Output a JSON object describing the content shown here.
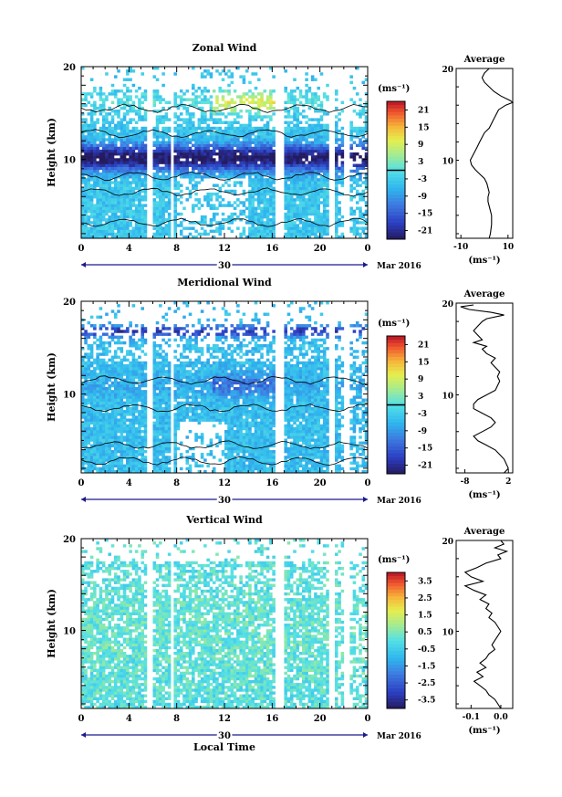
{
  "date_label": "Mar 2016",
  "day_label": "30",
  "xlabel_bottom": "Local Time",
  "cbar_unit": "(ms⁻¹)",
  "chart_data": [
    {
      "type": "heatmap",
      "title": "Zonal Wind",
      "xlabel": "",
      "ylabel": "Height (km)",
      "x_ticks": [
        "0",
        "4",
        "8",
        "12",
        "16",
        "20",
        "0"
      ],
      "y_ticks": [
        "20",
        "10"
      ],
      "x_range_hours": [
        0,
        24
      ],
      "y_range_km": [
        1.5,
        20
      ],
      "colorbar": {
        "unit": "(ms⁻¹)",
        "ticks": [
          21,
          15,
          9,
          3,
          -3,
          -9,
          -15,
          -21
        ],
        "range": [
          -24,
          24
        ],
        "zero_line": true
      },
      "profile": {
        "title": "Average",
        "xlabel": "(ms⁻¹)",
        "x_ticks": [
          "-10",
          "10"
        ],
        "x_range": [
          -12,
          12
        ],
        "y_ticks": [
          "20",
          "10"
        ],
        "points": [
          [
            2,
            20
          ],
          [
            0,
            19.5
          ],
          [
            -1,
            19
          ],
          [
            0,
            18.5
          ],
          [
            2,
            18
          ],
          [
            4,
            17.5
          ],
          [
            7,
            17
          ],
          [
            11,
            16.5
          ],
          [
            12,
            16.3
          ],
          [
            9,
            16
          ],
          [
            6,
            15.5
          ],
          [
            5,
            15
          ],
          [
            4,
            14.5
          ],
          [
            3,
            14
          ],
          [
            2,
            13.5
          ],
          [
            0,
            13
          ],
          [
            -1,
            12.5
          ],
          [
            -2,
            12
          ],
          [
            -3,
            11.5
          ],
          [
            -4,
            11
          ],
          [
            -5,
            10.5
          ],
          [
            -6,
            10
          ],
          [
            -5.5,
            9.5
          ],
          [
            -4,
            9
          ],
          [
            -2,
            8.5
          ],
          [
            0,
            8
          ],
          [
            1,
            7.5
          ],
          [
            1.5,
            7
          ],
          [
            2,
            6.5
          ],
          [
            1.5,
            6
          ],
          [
            1.5,
            5.5
          ],
          [
            2,
            5
          ],
          [
            2.5,
            4.5
          ],
          [
            3,
            4
          ],
          [
            3,
            3
          ],
          [
            2.5,
            2
          ],
          [
            2,
            1.5
          ]
        ]
      },
      "cells": "zonal wind field (estimated)",
      "pattern": {
        "jet_center_km": 10.2,
        "jet_value": -20,
        "jet_width_km": 1.4,
        "upper_value": 14,
        "upper_center_km": 16.2,
        "lower_value": -4
      }
    },
    {
      "type": "heatmap",
      "title": "Meridional Wind",
      "xlabel": "",
      "ylabel": "Height (km)",
      "x_ticks": [
        "0",
        "4",
        "8",
        "12",
        "16",
        "20",
        "0"
      ],
      "y_ticks": [
        "20",
        "10"
      ],
      "x_range_hours": [
        0,
        24
      ],
      "y_range_km": [
        1.5,
        20
      ],
      "colorbar": {
        "unit": "(ms⁻¹)",
        "ticks": [
          21,
          15,
          9,
          3,
          -3,
          -9,
          -15,
          -21
        ],
        "range": [
          -24,
          24
        ],
        "zero_line": true
      },
      "profile": {
        "title": "Average",
        "xlabel": "(ms⁻¹)",
        "x_ticks": [
          "-8",
          "2"
        ],
        "x_range": [
          -10,
          3
        ],
        "y_ticks": [
          "20",
          "10"
        ],
        "points": [
          [
            -6,
            19.8
          ],
          [
            -9,
            19.6
          ],
          [
            -7,
            19.3
          ],
          [
            -2,
            19
          ],
          [
            1,
            18.7
          ],
          [
            -3,
            18.3
          ],
          [
            -4,
            18
          ],
          [
            -5,
            17.5
          ],
          [
            -6,
            17
          ],
          [
            -5,
            16.5
          ],
          [
            -4,
            16
          ],
          [
            -6,
            15.7
          ],
          [
            -3,
            15.3
          ],
          [
            -4,
            15
          ],
          [
            -3,
            14.5
          ],
          [
            -1,
            14
          ],
          [
            -2,
            13.5
          ],
          [
            -1,
            13
          ],
          [
            0,
            12.5
          ],
          [
            -0.5,
            12
          ],
          [
            0,
            11.5
          ],
          [
            -0.5,
            11
          ],
          [
            -1,
            10.5
          ],
          [
            -3,
            10
          ],
          [
            -5,
            9.5
          ],
          [
            -6,
            9
          ],
          [
            -6,
            8.5
          ],
          [
            -4,
            8
          ],
          [
            -2,
            7.5
          ],
          [
            -1,
            7
          ],
          [
            -2,
            6.5
          ],
          [
            -4,
            6
          ],
          [
            -6,
            5.5
          ],
          [
            -5,
            5
          ],
          [
            -3,
            4.5
          ],
          [
            -1,
            4
          ],
          [
            0,
            3.5
          ],
          [
            1,
            3
          ],
          [
            2,
            2
          ],
          [
            1,
            1.5
          ]
        ]
      },
      "cells": "meridional wind field (estimated)",
      "pattern": {
        "jet_center_km": 16.8,
        "jet_value": -14,
        "jet_width_km": 0.6,
        "upper_value": -8,
        "upper_center_km": 11,
        "lower_value": -5
      }
    },
    {
      "type": "heatmap",
      "title": "Vertical Wind",
      "xlabel": "Local Time",
      "ylabel": "Height (km)",
      "x_ticks": [
        "0",
        "4",
        "8",
        "12",
        "16",
        "20",
        "0"
      ],
      "y_ticks": [
        "20",
        "10"
      ],
      "x_range_hours": [
        0,
        24
      ],
      "y_range_km": [
        1.5,
        20
      ],
      "colorbar": {
        "unit": "(ms⁻¹)",
        "ticks": [
          3.5,
          2.5,
          1.5,
          0.5,
          -0.5,
          -1.5,
          -2.5,
          -3.5
        ],
        "range": [
          -4,
          4
        ],
        "zero_line": false
      },
      "profile": {
        "title": "Average",
        "xlabel": "(ms⁻¹)",
        "x_ticks": [
          "-0.1",
          "0.0"
        ],
        "x_range": [
          -0.15,
          0.04
        ],
        "y_ticks": [
          "20",
          "10"
        ],
        "points": [
          [
            0.0,
            20
          ],
          [
            0.01,
            19.6
          ],
          [
            -0.02,
            19.2
          ],
          [
            0.02,
            18.8
          ],
          [
            -0.01,
            18.4
          ],
          [
            0.0,
            18
          ],
          [
            -0.05,
            17.5
          ],
          [
            -0.08,
            17
          ],
          [
            -0.12,
            16.5
          ],
          [
            -0.1,
            16
          ],
          [
            -0.06,
            15.5
          ],
          [
            -0.12,
            15
          ],
          [
            -0.09,
            14.5
          ],
          [
            -0.05,
            14
          ],
          [
            -0.07,
            13.5
          ],
          [
            -0.04,
            13
          ],
          [
            -0.05,
            12.5
          ],
          [
            -0.03,
            12
          ],
          [
            -0.04,
            11.5
          ],
          [
            -0.02,
            11
          ],
          [
            -0.01,
            10.5
          ],
          [
            0.0,
            10
          ],
          [
            -0.01,
            9.5
          ],
          [
            -0.02,
            9
          ],
          [
            -0.03,
            8.5
          ],
          [
            -0.02,
            8
          ],
          [
            -0.04,
            7.5
          ],
          [
            -0.05,
            7
          ],
          [
            -0.07,
            6.5
          ],
          [
            -0.05,
            6
          ],
          [
            -0.08,
            5.5
          ],
          [
            -0.06,
            5
          ],
          [
            -0.09,
            4.5
          ],
          [
            -0.07,
            4
          ],
          [
            -0.05,
            3.5
          ],
          [
            -0.04,
            3
          ],
          [
            -0.02,
            2.5
          ],
          [
            -0.01,
            2
          ],
          [
            0.0,
            1.5
          ]
        ]
      },
      "cells": "vertical wind field (estimated)",
      "pattern": {
        "jet_center_km": 10,
        "jet_value": 0.2,
        "jet_width_km": 5,
        "upper_value": 0.1,
        "upper_center_km": 16,
        "lower_value": 0
      }
    }
  ]
}
